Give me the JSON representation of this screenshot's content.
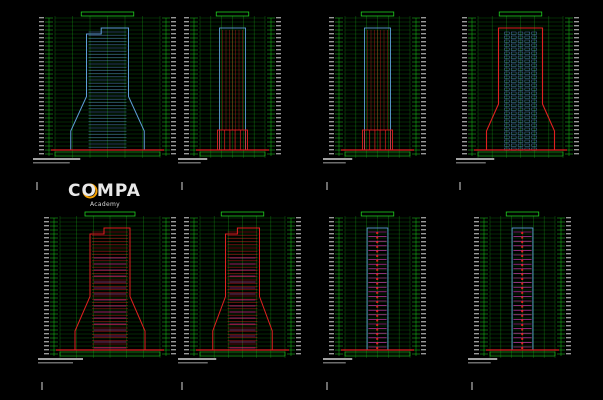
{
  "canvas": {
    "background": "#000000"
  },
  "logo": {
    "name_text": "COMPA",
    "tagline": "Academy",
    "accent_color": "#f5a000"
  },
  "palette": {
    "grid_green": "#20d020",
    "dim_green": "#0c7a0c",
    "facade_cyan": "#5e9ed8",
    "section_red": "#e02020",
    "magenta": "#e040c0",
    "label_white": "#d8d8d8"
  },
  "sheets": [
    {
      "id": "elevation-1",
      "row": 1,
      "style": "elevation"
    },
    {
      "id": "elevation-2",
      "row": 1,
      "style": "slab"
    },
    {
      "id": "elevation-3",
      "row": 1,
      "style": "slab"
    },
    {
      "id": "elevation-4",
      "row": 1,
      "style": "red-outline"
    },
    {
      "id": "section-1",
      "row": 2,
      "style": "section"
    },
    {
      "id": "section-2",
      "row": 2,
      "style": "section"
    },
    {
      "id": "section-3",
      "row": 2,
      "style": "section-narrow"
    },
    {
      "id": "section-4",
      "row": 2,
      "style": "section-narrow"
    }
  ]
}
